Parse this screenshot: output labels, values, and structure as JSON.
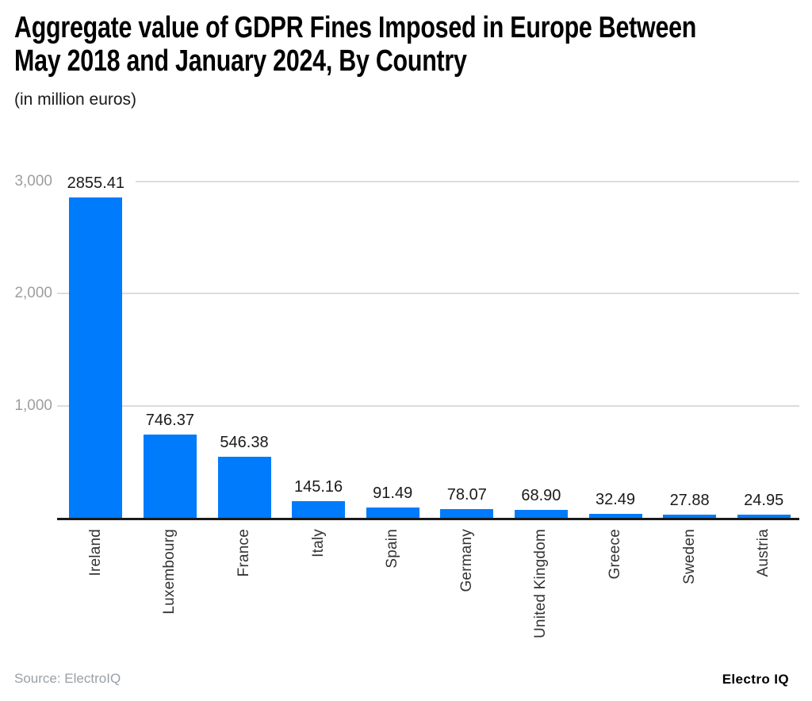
{
  "header": {
    "title_lines": [
      "Aggregate value of GDPR Fines Imposed in Europe Between",
      "May 2018 and January 2024, By Country"
    ],
    "subtitle": "(in million euros)"
  },
  "chart_data": {
    "type": "bar",
    "title": "Aggregate value of GDPR Fines Imposed in Europe Between May 2018 and January 2024, By Country",
    "subtitle": "(in million euros)",
    "unit": "million euros",
    "categories": [
      "Ireland",
      "Luxembourg",
      "France",
      "Italy",
      "Spain",
      "Germany",
      "United Kingdom",
      "Greece",
      "Sweden",
      "Austria"
    ],
    "values": [
      2855.41,
      746.37,
      546.38,
      145.16,
      91.49,
      78.07,
      68.9,
      32.49,
      27.88,
      24.95
    ],
    "value_labels": [
      "2855.41",
      "746.37",
      "546.38",
      "145.16",
      "91.49",
      "78.07",
      "68.90",
      "32.49",
      "27.88",
      "24.95"
    ],
    "ylim": [
      0,
      3000
    ],
    "yticks": [
      {
        "value": 1000,
        "label": "1,000"
      },
      {
        "value": 2000,
        "label": "2,000"
      },
      {
        "value": 3000,
        "label": "3,000"
      }
    ],
    "grid": "horizontal",
    "legend": "none",
    "colors": {
      "bar": "#007BFC",
      "grid": "#DCDCDC",
      "axis_line": "#1A1A1A",
      "tick_label": "#9E9E9E",
      "value_label": "#1A1A1A",
      "category_label": "#333333"
    }
  },
  "footer": {
    "source": "Source: ElectroIQ",
    "brand": "Electro IQ"
  }
}
